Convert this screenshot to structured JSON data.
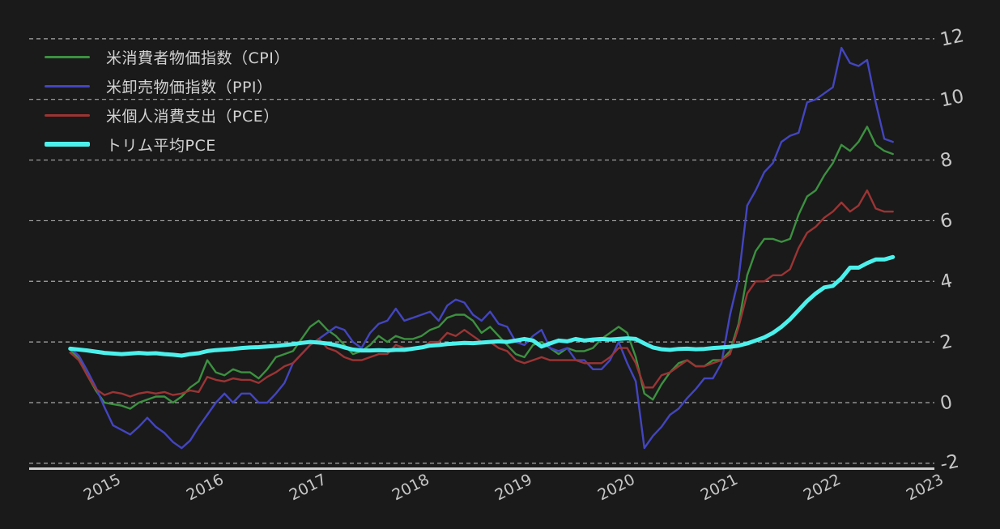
{
  "chart_data": {
    "type": "line",
    "title": "",
    "x_axis": {
      "tick_labels": [
        "2015",
        "2016",
        "2017",
        "2018",
        "2019",
        "2020",
        "2021",
        "2022",
        "2023"
      ],
      "start_month": "2014-09",
      "end_month": "2022-09",
      "frequency": "monthly"
    },
    "y_axis": {
      "ticks": [
        12,
        10,
        8,
        6,
        4,
        2,
        0,
        -2
      ],
      "side": "right",
      "ylim": [
        -2.8,
        12.4
      ]
    },
    "grid": {
      "horizontal": true,
      "style": "dashed"
    },
    "legend_position": "top-left",
    "colors": {
      "background": "#1a1a1a",
      "gridline": "#d8d8d8",
      "axis_line": "#d0d0d0",
      "tick_text": "#c6c6c6",
      "legend_text": "#d2d2d2"
    },
    "series": [
      {
        "name": "米消費者物価指数（CPI）",
        "color": "#3c9140",
        "line_width": 2.4,
        "values": [
          1.75,
          1.45,
          0.9,
          0.4,
          0.0,
          -0.05,
          -0.1,
          -0.2,
          0.0,
          0.1,
          0.2,
          0.2,
          0.0,
          0.2,
          0.5,
          0.7,
          1.4,
          1.0,
          0.9,
          1.1,
          1.0,
          1.0,
          0.8,
          1.1,
          1.5,
          1.6,
          1.7,
          2.1,
          2.5,
          2.7,
          2.4,
          2.2,
          1.9,
          1.6,
          1.7,
          1.9,
          2.2,
          2.0,
          2.2,
          2.1,
          2.1,
          2.2,
          2.4,
          2.5,
          2.8,
          2.9,
          2.9,
          2.7,
          2.3,
          2.5,
          2.2,
          1.9,
          1.6,
          1.5,
          1.9,
          2.0,
          1.8,
          1.6,
          1.8,
          1.7,
          1.7,
          1.8,
          2.1,
          2.3,
          2.5,
          2.3,
          1.5,
          0.3,
          0.1,
          0.6,
          1.0,
          1.3,
          1.4,
          1.2,
          1.2,
          1.4,
          1.4,
          1.7,
          2.6,
          4.2,
          5.0,
          5.4,
          5.4,
          5.3,
          5.4,
          6.2,
          6.8,
          7.0,
          7.5,
          7.9,
          8.5,
          8.3,
          8.6,
          9.1,
          8.5,
          8.3,
          8.2
        ]
      },
      {
        "name": "米卸売物価指数（PPI）",
        "color": "#4345c0",
        "line_width": 2.4,
        "values": [
          1.8,
          1.55,
          1.05,
          0.5,
          -0.15,
          -0.75,
          -0.9,
          -1.05,
          -0.8,
          -0.5,
          -0.8,
          -1.0,
          -1.3,
          -1.5,
          -1.25,
          -0.8,
          -0.4,
          0.0,
          0.3,
          0.0,
          0.3,
          0.3,
          0.0,
          0.0,
          0.3,
          0.65,
          1.3,
          1.6,
          1.9,
          2.1,
          2.3,
          2.5,
          2.4,
          2.0,
          1.8,
          2.3,
          2.6,
          2.7,
          3.1,
          2.7,
          2.8,
          2.9,
          3.0,
          2.7,
          3.2,
          3.4,
          3.3,
          2.9,
          2.7,
          3.0,
          2.6,
          2.5,
          2.0,
          1.9,
          2.2,
          2.4,
          1.8,
          1.7,
          1.8,
          1.4,
          1.4,
          1.1,
          1.1,
          1.4,
          2.0,
          1.3,
          0.7,
          -1.5,
          -1.1,
          -0.8,
          -0.4,
          -0.2,
          0.15,
          0.45,
          0.8,
          0.8,
          1.3,
          2.9,
          4.1,
          6.5,
          7.0,
          7.6,
          7.9,
          8.6,
          8.8,
          8.9,
          9.9,
          10.0,
          10.2,
          10.4,
          11.7,
          11.2,
          11.1,
          11.3,
          9.9,
          8.7,
          8.6
        ]
      },
      {
        "name": "米個人消費支出（PCE）",
        "color": "#9c3434",
        "line_width": 2.4,
        "values": [
          1.65,
          1.4,
          0.9,
          0.45,
          0.25,
          0.35,
          0.3,
          0.2,
          0.3,
          0.35,
          0.3,
          0.35,
          0.25,
          0.3,
          0.4,
          0.35,
          0.85,
          0.75,
          0.7,
          0.8,
          0.75,
          0.75,
          0.65,
          0.85,
          1.0,
          1.2,
          1.3,
          1.6,
          1.9,
          2.1,
          1.8,
          1.7,
          1.5,
          1.4,
          1.4,
          1.5,
          1.6,
          1.6,
          1.9,
          1.8,
          1.8,
          1.8,
          2.0,
          2.0,
          2.3,
          2.2,
          2.4,
          2.2,
          2.0,
          2.0,
          1.8,
          1.7,
          1.4,
          1.3,
          1.4,
          1.5,
          1.4,
          1.4,
          1.4,
          1.4,
          1.3,
          1.3,
          1.3,
          1.5,
          1.8,
          1.8,
          1.3,
          0.5,
          0.5,
          0.9,
          1.0,
          1.2,
          1.4,
          1.2,
          1.2,
          1.3,
          1.4,
          1.6,
          2.5,
          3.6,
          4.0,
          4.0,
          4.2,
          4.2,
          4.4,
          5.1,
          5.6,
          5.8,
          6.1,
          6.3,
          6.6,
          6.3,
          6.5,
          7.0,
          6.4,
          6.3,
          6.3
        ]
      },
      {
        "name": "トリム平均PCE",
        "color": "#4df1ec",
        "line_width": 5,
        "values": [
          1.78,
          1.75,
          1.72,
          1.68,
          1.64,
          1.62,
          1.6,
          1.62,
          1.64,
          1.62,
          1.63,
          1.6,
          1.58,
          1.55,
          1.6,
          1.63,
          1.7,
          1.73,
          1.75,
          1.77,
          1.8,
          1.82,
          1.83,
          1.85,
          1.87,
          1.9,
          1.93,
          1.97,
          2.0,
          1.98,
          1.95,
          1.9,
          1.82,
          1.75,
          1.72,
          1.72,
          1.73,
          1.72,
          1.74,
          1.74,
          1.78,
          1.82,
          1.88,
          1.9,
          1.93,
          1.95,
          1.97,
          1.96,
          1.98,
          2.0,
          2.02,
          2.0,
          2.05,
          2.1,
          2.05,
          1.85,
          1.95,
          2.05,
          2.02,
          2.1,
          2.05,
          2.08,
          2.1,
          2.08,
          2.1,
          2.12,
          2.1,
          1.95,
          1.82,
          1.76,
          1.74,
          1.77,
          1.78,
          1.76,
          1.77,
          1.8,
          1.82,
          1.84,
          1.88,
          1.95,
          2.05,
          2.15,
          2.3,
          2.5,
          2.75,
          3.05,
          3.35,
          3.6,
          3.8,
          3.85,
          4.1,
          4.45,
          4.45,
          4.6,
          4.72,
          4.72,
          4.8
        ]
      }
    ]
  }
}
